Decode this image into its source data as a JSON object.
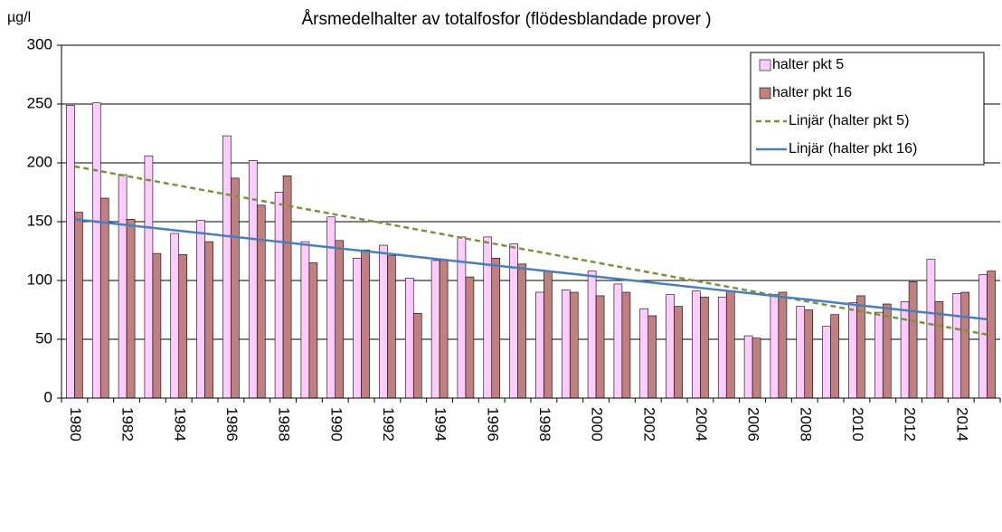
{
  "chart_data": {
    "type": "bar",
    "title": "Årsmedelhalter av totalfosfor (flödesblandade prover )",
    "y_label": "µg/l",
    "categories": [
      "1980",
      null,
      "1982",
      null,
      "1984",
      null,
      "1986",
      null,
      "1988",
      null,
      "1990",
      null,
      "1992",
      null,
      "1994",
      null,
      "1996",
      null,
      "1998",
      null,
      "2000",
      null,
      "2002",
      null,
      "2004",
      null,
      "2006",
      null,
      "2008",
      null,
      "2010",
      null,
      "2012",
      null,
      "2014",
      null
    ],
    "series": [
      {
        "name": "halter pkt 5",
        "type": "bar",
        "color": "#ffccff",
        "values": [
          249,
          251,
          190,
          206,
          140,
          151,
          223,
          202,
          175,
          133,
          154,
          119,
          130,
          102,
          117,
          137,
          137,
          131,
          90,
          92,
          108,
          97,
          76,
          88,
          91,
          86,
          53,
          88,
          78,
          61,
          81,
          73,
          82,
          118,
          89,
          105
        ]
      },
      {
        "name": "halter pkt 16",
        "type": "bar",
        "color": "#c0807f",
        "values": [
          158,
          170,
          152,
          123,
          122,
          133,
          187,
          164,
          189,
          115,
          134,
          126,
          121,
          72,
          117,
          103,
          119,
          114,
          108,
          90,
          87,
          90,
          70,
          78,
          86,
          91,
          51,
          90,
          75,
          71,
          87,
          80,
          99,
          82,
          90,
          108
        ]
      },
      {
        "name": "Linjär (halter pkt 5)",
        "type": "line",
        "dashed": true,
        "color": "#77933c",
        "values": [
          197,
          192.9,
          188.8,
          184.7,
          180.7,
          176.6,
          172.5,
          168.4,
          164.3,
          160.2,
          156.1,
          152.1,
          148,
          143.9,
          139.8,
          135.7,
          131.6,
          127.5,
          123.5,
          119.4,
          115.3,
          111.2,
          107.1,
          103,
          98.9,
          94.9,
          90.8,
          86.7,
          82.6,
          78.5,
          74.4,
          70.3,
          66.2,
          62.2,
          58.1,
          54
        ]
      },
      {
        "name": "Linjär (halter pkt 16)",
        "type": "line",
        "dashed": false,
        "color": "#4a7ebb",
        "values": [
          152,
          149.6,
          147.1,
          144.7,
          142.3,
          139.9,
          137.4,
          135,
          132.6,
          130.1,
          127.7,
          125.3,
          122.9,
          120.4,
          118,
          115.6,
          113.1,
          110.7,
          108.3,
          105.9,
          103.4,
          101,
          98.6,
          96.1,
          93.7,
          91.3,
          88.9,
          86.4,
          84,
          81.6,
          79.1,
          76.7,
          74.3,
          71.9,
          69.4,
          67
        ]
      }
    ],
    "ylim": [
      0,
      300
    ],
    "yticks": [
      0,
      50,
      100,
      150,
      200,
      250,
      300
    ],
    "grid": true,
    "legend": "top-right"
  }
}
